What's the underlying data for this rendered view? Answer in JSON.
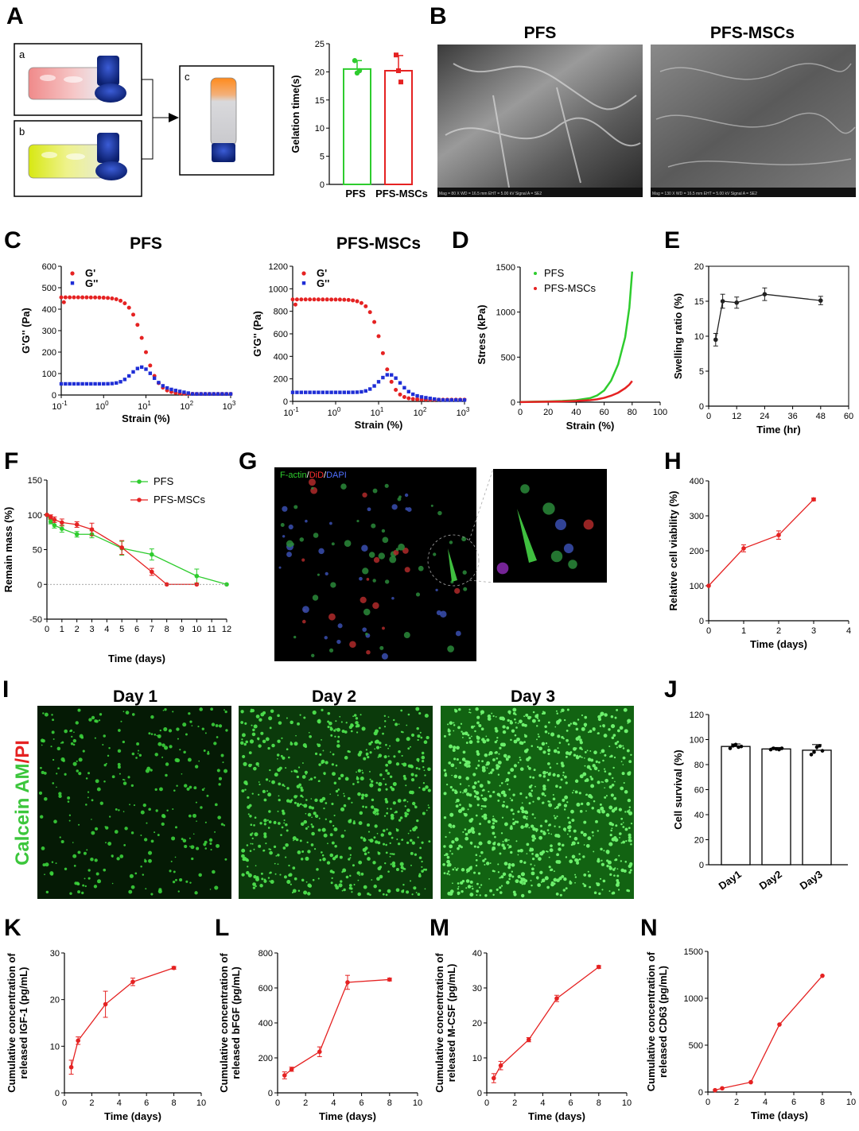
{
  "panel_labels": {
    "A": "A",
    "B": "B",
    "C": "C",
    "D": "D",
    "E": "E",
    "F": "F",
    "G": "G",
    "H": "H",
    "I": "I",
    "J": "J",
    "K": "K",
    "L": "L",
    "M": "M",
    "N": "N"
  },
  "photo_labels": {
    "a": "a",
    "b": "b",
    "c": "c"
  },
  "sem_titles": [
    "PFS",
    "PFS-MSCs"
  ],
  "sem_footer": [
    "Mag = 80 X   WD = 16.5 mm   EHT = 5.00 kV   Signal A = SE2",
    "Mag = 130 X   WD = 16.5 mm   EHT = 5.00 kV   Signal A = SE2"
  ],
  "confocal_label": {
    "green": "F-actin",
    "red": "DiD",
    "blue": "DAPI",
    "sep": "/"
  },
  "live_dead": {
    "stain_green": "Calcein AM",
    "stain_sep": "/",
    "stain_red": "PI",
    "days": [
      "Day 1",
      "Day 2",
      "Day 3"
    ]
  },
  "colors": {
    "green": "#2ecc2e",
    "red": "#e52222",
    "blue": "#1f2ed6",
    "black": "#222222"
  },
  "chart_data": [
    {
      "id": "A_bar",
      "type": "bar",
      "ylabel": "Gelation time(s)",
      "ylim": [
        0,
        25
      ],
      "yticks": [
        0,
        5,
        10,
        15,
        20,
        25
      ],
      "categories": [
        "PFS",
        "PFS-MSCs"
      ],
      "values": [
        20.5,
        20.2
      ],
      "errors": [
        1.5,
        2.7
      ],
      "points": [
        [
          22,
          19.8,
          20.2
        ],
        [
          23,
          20.2,
          18.2
        ]
      ],
      "bar_colors": [
        "#2ecc2e",
        "#e52222"
      ]
    },
    {
      "id": "C_PFS",
      "type": "scatter",
      "title": "PFS",
      "xlabel": "Strain (%)",
      "ylabel": "G'G'' (Pa)",
      "xscale": "log",
      "xlim": [
        0.1,
        1000
      ],
      "ylim": [
        0,
        600
      ],
      "yticks": [
        0,
        100,
        200,
        300,
        400,
        500,
        600
      ],
      "xticks": [
        {
          "v": 0.1,
          "base": "10",
          "exp": "-1"
        },
        {
          "v": 1,
          "base": "10",
          "exp": "0"
        },
        {
          "v": 10,
          "base": "10",
          "exp": "1"
        },
        {
          "v": 100,
          "base": "10",
          "exp": "2"
        },
        {
          "v": 1000,
          "base": "10",
          "exp": "3"
        }
      ],
      "series": [
        {
          "name": "G'",
          "color": "#e52222",
          "marker": "circle",
          "plateau": 455,
          "mid": 9,
          "steep": 2.6,
          "end": 5,
          "dip": 0
        },
        {
          "name": "G''",
          "color": "#1f2ed6",
          "marker": "square",
          "plateau": 52,
          "peak": 130,
          "peak_at": 8,
          "end": 5
        }
      ]
    },
    {
      "id": "C_PFSMSC",
      "type": "scatter",
      "title": "PFS-MSCs",
      "xlabel": "Strain (%)",
      "ylabel": "G'G'' (Pa)",
      "xscale": "log",
      "xlim": [
        0.1,
        1000
      ],
      "ylim": [
        0,
        1200
      ],
      "yticks": [
        0,
        200,
        400,
        600,
        800,
        1000,
        1200
      ],
      "xticks": [
        {
          "v": 0.1,
          "base": "10",
          "exp": "-1"
        },
        {
          "v": 1,
          "base": "10",
          "exp": "0"
        },
        {
          "v": 10,
          "base": "10",
          "exp": "1"
        },
        {
          "v": 100,
          "base": "10",
          "exp": "2"
        },
        {
          "v": 1000,
          "base": "10",
          "exp": "3"
        }
      ],
      "series": [
        {
          "name": "G'",
          "color": "#e52222",
          "marker": "circle",
          "plateau": 905,
          "mid": 12,
          "steep": 3.0,
          "end": 15
        },
        {
          "name": "G''",
          "color": "#1f2ed6",
          "marker": "square",
          "plateau": 80,
          "peak": 240,
          "peak_at": 18,
          "end": 12
        }
      ]
    },
    {
      "id": "D",
      "type": "line",
      "xlabel": "Strain (%)",
      "ylabel": "Stress (kPa)",
      "xlim": [
        0,
        100
      ],
      "ylim": [
        0,
        1500
      ],
      "xticks": [
        0,
        20,
        40,
        60,
        80,
        100
      ],
      "yticks": [
        0,
        500,
        1000,
        1500
      ],
      "series": [
        {
          "name": "PFS",
          "color": "#2ecc2e",
          "x": [
            0,
            10,
            20,
            30,
            40,
            50,
            55,
            60,
            65,
            70,
            75,
            78,
            80
          ],
          "y": [
            2,
            5,
            8,
            13,
            22,
            45,
            75,
            130,
            240,
            420,
            720,
            1050,
            1450
          ]
        },
        {
          "name": "PFS-MSCs",
          "color": "#e52222",
          "x": [
            0,
            10,
            20,
            30,
            40,
            50,
            55,
            60,
            65,
            70,
            75,
            78,
            80
          ],
          "y": [
            1,
            3,
            5,
            8,
            13,
            22,
            32,
            48,
            72,
            105,
            155,
            195,
            235
          ]
        }
      ]
    },
    {
      "id": "E",
      "type": "line",
      "xlabel": "Time (hr)",
      "ylabel": "Swelling ratio (%)",
      "xlim": [
        0,
        60
      ],
      "ylim": [
        0,
        20
      ],
      "xticks": [
        0,
        12,
        24,
        36,
        48,
        60
      ],
      "yticks": [
        0,
        5,
        10,
        15,
        20
      ],
      "series": [
        {
          "name": "",
          "color": "#222222",
          "x": [
            3,
            6,
            12,
            24,
            48
          ],
          "y": [
            9.5,
            15.0,
            14.8,
            16.0,
            15.1
          ],
          "err": [
            0.9,
            1.0,
            0.8,
            0.9,
            0.6
          ]
        }
      ]
    },
    {
      "id": "F",
      "type": "line",
      "xlabel": "Time (days)",
      "ylabel": "Remain mass (%)",
      "xlim": [
        0,
        12
      ],
      "ylim": [
        -50,
        150
      ],
      "xticks": [
        0,
        1,
        2,
        3,
        4,
        5,
        6,
        7,
        8,
        9,
        10,
        11,
        12
      ],
      "yticks": [
        -50,
        0,
        50,
        100,
        150
      ],
      "series": [
        {
          "name": "PFS",
          "color": "#2ecc2e",
          "x": [
            0,
            0.25,
            0.5,
            1,
            2,
            3,
            5,
            7,
            10,
            12
          ],
          "y": [
            100,
            90,
            85,
            80,
            72,
            72,
            52,
            43,
            12,
            0
          ],
          "err": [
            0,
            3,
            4,
            5,
            4,
            5,
            10,
            8,
            10,
            0
          ]
        },
        {
          "name": "PFS-MSCs",
          "color": "#e52222",
          "x": [
            0,
            0.25,
            0.5,
            1,
            2,
            3,
            5,
            7,
            8,
            10
          ],
          "y": [
            100,
            97,
            93,
            89,
            86,
            79,
            53,
            18,
            0,
            0
          ],
          "err": [
            0,
            3,
            4,
            5,
            4,
            9,
            10,
            5,
            0,
            0
          ]
        }
      ]
    },
    {
      "id": "H",
      "type": "line",
      "xlabel": "Time (days)",
      "ylabel": "Relative cell viability (%)",
      "xlim": [
        0,
        4
      ],
      "ylim": [
        0,
        400
      ],
      "xticks": [
        0,
        1,
        2,
        3,
        4
      ],
      "yticks": [
        0,
        100,
        200,
        300,
        400
      ],
      "series": [
        {
          "name": "",
          "color": "#e52222",
          "x": [
            0,
            1,
            2,
            3
          ],
          "y": [
            100,
            207,
            245,
            347
          ],
          "err": [
            0,
            10,
            12,
            4
          ]
        }
      ]
    },
    {
      "id": "J",
      "type": "bar",
      "ylabel": "Cell survival (%)",
      "ylim": [
        0,
        120
      ],
      "yticks": [
        0,
        20,
        40,
        60,
        80,
        100,
        120
      ],
      "categories": [
        "Day1",
        "Day2",
        "Day3"
      ],
      "values": [
        94.5,
        92.5,
        91.5
      ],
      "errors": [
        2.0,
        1.2,
        4.5
      ],
      "points": [
        [
          93,
          95,
          96,
          94,
          94.5
        ],
        [
          92,
          93,
          92.5,
          92,
          93
        ],
        [
          88,
          90,
          94,
          95,
          91
        ]
      ]
    },
    {
      "id": "K",
      "type": "line",
      "xlabel": "Time (days)",
      "ylabel": "Cumulative concentration of released IGF-1 (pg/mL)",
      "ylabel_lines": [
        "Cumulative concentration of",
        "released IGF-1 (pg/mL)"
      ],
      "xlim": [
        0,
        10
      ],
      "ylim": [
        0,
        30
      ],
      "xticks": [
        0,
        2,
        4,
        6,
        8,
        10
      ],
      "yticks": [
        0,
        10,
        20,
        30
      ],
      "series": [
        {
          "name": "",
          "color": "#e52222",
          "x": [
            0.5,
            1,
            3,
            5,
            8
          ],
          "y": [
            5.5,
            11.2,
            19.0,
            23.8,
            26.8
          ],
          "err": [
            1.5,
            0.8,
            2.8,
            0.8,
            0.3
          ]
        }
      ]
    },
    {
      "id": "L",
      "type": "line",
      "xlabel": "Time (days)",
      "ylabel": "Cumulative concentration of released bFGF (pg/mL)",
      "ylabel_lines": [
        "Cumulative concentration of",
        "released bFGF (pg/mL)"
      ],
      "xlim": [
        0,
        10
      ],
      "ylim": [
        0,
        800
      ],
      "xticks": [
        0,
        2,
        4,
        6,
        8,
        10
      ],
      "yticks": [
        0,
        200,
        400,
        600,
        800
      ],
      "series": [
        {
          "name": "",
          "color": "#e52222",
          "x": [
            0.5,
            1,
            3,
            5,
            8
          ],
          "y": [
            100,
            135,
            235,
            632,
            648
          ],
          "err": [
            20,
            12,
            28,
            40,
            8
          ]
        }
      ]
    },
    {
      "id": "M",
      "type": "line",
      "xlabel": "Time (days)",
      "ylabel": "Cumulative concentration of released M-CSF (pg/mL)",
      "ylabel_lines": [
        "Cumulative concentration of",
        "released M-CSF (pg/mL)"
      ],
      "xlim": [
        0,
        10
      ],
      "ylim": [
        0,
        40
      ],
      "xticks": [
        0,
        2,
        4,
        6,
        8,
        10
      ],
      "yticks": [
        0,
        10,
        20,
        30,
        40
      ],
      "series": [
        {
          "name": "",
          "color": "#e52222",
          "x": [
            0.5,
            1,
            3,
            5,
            8
          ],
          "y": [
            4.2,
            7.8,
            15.2,
            27.0,
            36.0
          ],
          "err": [
            1.3,
            1.2,
            0.6,
            0.9,
            0.4
          ]
        }
      ]
    },
    {
      "id": "N",
      "type": "line",
      "xlabel": "Time (days)",
      "ylabel": "Cumulative concentration of released CD63 (pg/mL)",
      "ylabel_lines": [
        "Cumulative concentration of",
        "released CD63 (pg/mL)"
      ],
      "xlim": [
        0,
        10
      ],
      "ylim": [
        0,
        1500
      ],
      "xticks": [
        0,
        2,
        4,
        6,
        8,
        10
      ],
      "yticks": [
        0,
        500,
        1000,
        1500
      ],
      "series": [
        {
          "name": "",
          "color": "#e52222",
          "x": [
            0.5,
            1,
            3,
            5,
            8
          ],
          "y": [
            20,
            40,
            105,
            720,
            1240
          ],
          "err": [
            0,
            0,
            0,
            0,
            0
          ]
        }
      ]
    }
  ]
}
